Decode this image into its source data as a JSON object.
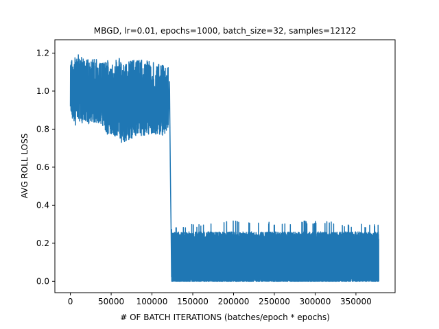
{
  "chart_data": {
    "type": "line",
    "title": "MBGD, lr=0.01, epochs=1000, batch_size=32, samples=12122",
    "xlabel": "# OF BATCH ITERATIONS (batches/epoch * epochs)",
    "ylabel": "AVG ROLL LOSS",
    "xlim": [
      -19000,
      398000
    ],
    "ylim": [
      -0.06,
      1.27
    ],
    "x_ticks": [
      0,
      50000,
      100000,
      150000,
      200000,
      250000,
      300000,
      350000
    ],
    "x_tick_labels": [
      "0",
      "50000",
      "100000",
      "150000",
      "200000",
      "250000",
      "300000",
      "350000"
    ],
    "y_ticks": [
      0.0,
      0.2,
      0.4,
      0.6,
      0.8,
      1.0,
      1.2
    ],
    "y_tick_labels": [
      "0.0",
      "0.2",
      "0.4",
      "0.6",
      "0.8",
      "1.0",
      "1.2"
    ],
    "grid": false,
    "series": [
      {
        "color": "#1f77b4",
        "envelope": [
          {
            "x": 0,
            "low": 0.88,
            "high": 1.17
          },
          {
            "x": 5000,
            "low": 0.8,
            "high": 1.2
          },
          {
            "x": 10000,
            "low": 0.82,
            "high": 1.21
          },
          {
            "x": 20000,
            "low": 0.81,
            "high": 1.18
          },
          {
            "x": 30000,
            "low": 0.82,
            "high": 1.19
          },
          {
            "x": 40000,
            "low": 0.8,
            "high": 1.16
          },
          {
            "x": 45000,
            "low": 0.75,
            "high": 1.18
          },
          {
            "x": 60000,
            "low": 0.74,
            "high": 1.19
          },
          {
            "x": 63000,
            "low": 0.7,
            "high": 1.16
          },
          {
            "x": 80000,
            "low": 0.74,
            "high": 1.19
          },
          {
            "x": 100000,
            "low": 0.76,
            "high": 1.17
          },
          {
            "x": 110000,
            "low": 0.74,
            "high": 1.16
          },
          {
            "x": 120000,
            "low": 0.77,
            "high": 1.14
          }
        ],
        "transition": [
          {
            "x": 121500,
            "y": 1.05
          },
          {
            "x": 122500,
            "y": 0.6
          },
          {
            "x": 123000,
            "y": 0.42
          },
          {
            "x": 123500,
            "y": 0.25
          }
        ],
        "envelope_after": [
          {
            "x": 124000,
            "low": 0.0,
            "high": 0.29
          },
          {
            "x": 150000,
            "low": 0.0,
            "high": 0.3
          },
          {
            "x": 200000,
            "low": 0.0,
            "high": 0.33
          },
          {
            "x": 250000,
            "low": 0.0,
            "high": 0.31
          },
          {
            "x": 300000,
            "low": 0.0,
            "high": 0.32
          },
          {
            "x": 350000,
            "low": 0.0,
            "high": 0.3
          },
          {
            "x": 378000,
            "low": 0.0,
            "high": 0.3
          }
        ]
      }
    ]
  }
}
